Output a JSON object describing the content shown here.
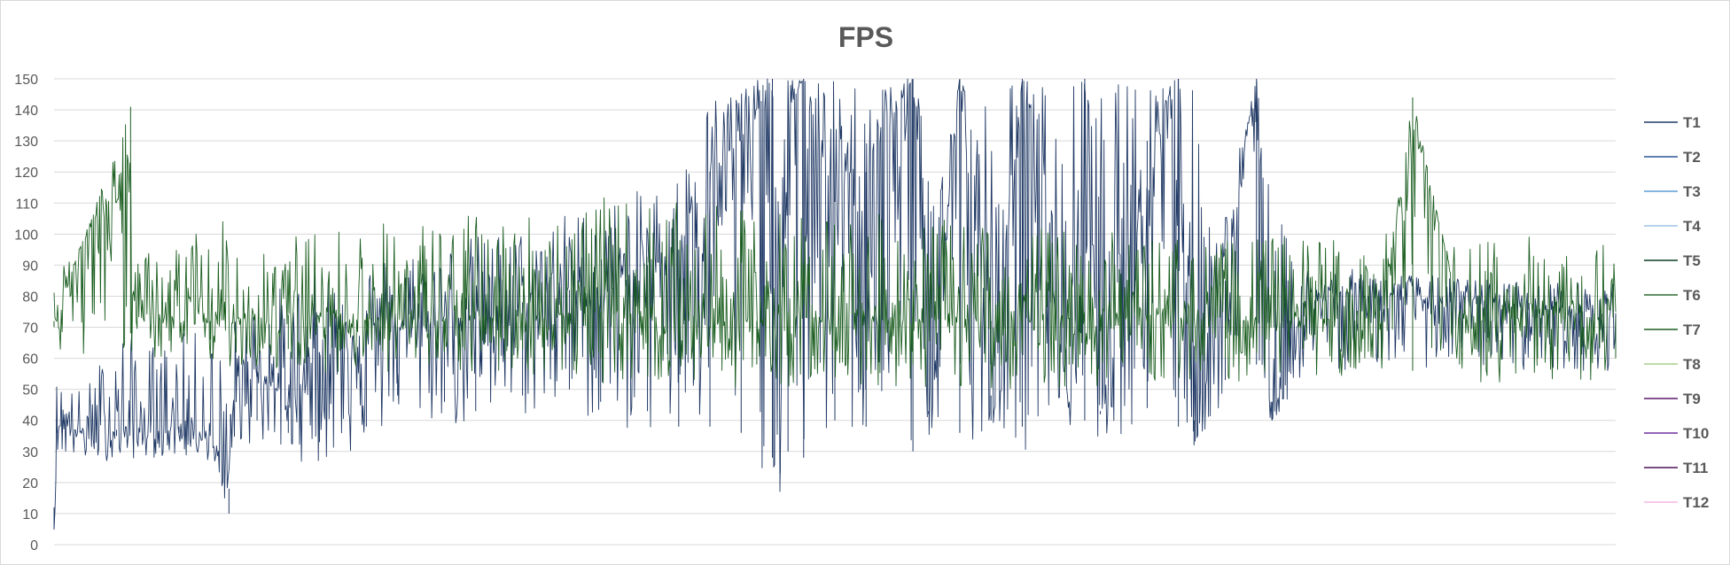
{
  "chart_data": {
    "type": "line",
    "title": "FPS",
    "xlabel": "",
    "ylabel": "",
    "ylim": [
      0,
      150
    ],
    "yticks": [
      0,
      10,
      20,
      30,
      40,
      50,
      60,
      70,
      80,
      90,
      100,
      110,
      120,
      130,
      140,
      150
    ],
    "grid": true,
    "legend_position": "right",
    "x_range": [
      0,
      1
    ],
    "series": [
      {
        "name": "T1",
        "color": "#1f3864",
        "x": [
          0.0,
          0.002,
          0.005,
          0.02,
          0.04,
          0.06,
          0.08,
          0.1,
          0.112,
          0.113,
          0.13,
          0.15,
          0.17,
          0.2,
          0.22,
          0.25,
          0.27,
          0.3,
          0.33,
          0.35,
          0.38,
          0.4,
          0.42,
          0.44,
          0.46,
          0.465,
          0.47,
          0.48,
          0.5,
          0.52,
          0.55,
          0.56,
          0.58,
          0.6,
          0.62,
          0.65,
          0.66,
          0.67,
          0.7,
          0.72,
          0.73,
          0.75,
          0.77,
          0.78,
          0.8,
          0.85,
          0.9,
          0.95,
          1.0
        ],
        "y": [
          5,
          38,
          40,
          35,
          37,
          36,
          38,
          36,
          10,
          42,
          58,
          45,
          62,
          68,
          70,
          72,
          75,
          78,
          82,
          80,
          90,
          95,
          120,
          130,
          150,
          28,
          140,
          150,
          110,
          120,
          150,
          42,
          150,
          40,
          150,
          45,
          150,
          42,
          130,
          150,
          32,
          85,
          150,
          40,
          78,
          80,
          78,
          76,
          74
        ],
        "band_low": [
          4,
          28,
          28,
          27,
          27,
          28,
          28,
          27,
          10,
          30,
          32,
          28,
          25,
          30,
          40,
          38,
          35,
          40,
          42,
          38,
          35,
          30,
          30,
          28,
          20,
          15,
          22,
          20,
          32,
          30,
          22,
          35,
          28,
          40,
          30,
          38,
          32,
          35,
          36,
          30,
          32,
          45,
          50,
          38,
          55,
          57,
          57,
          56,
          56
        ],
        "band_high": [
          10,
          62,
          52,
          50,
          72,
          65,
          68,
          70,
          60,
          72,
          80,
          85,
          88,
          92,
          95,
          98,
          100,
          102,
          108,
          110,
          115,
          120,
          145,
          150,
          150,
          150,
          150,
          150,
          150,
          150,
          150,
          150,
          150,
          150,
          150,
          150,
          150,
          150,
          150,
          150,
          150,
          110,
          150,
          110,
          90,
          88,
          86,
          85,
          84
        ]
      },
      {
        "name": "T2",
        "color": "#2e5597"
      },
      {
        "name": "T3",
        "color": "#5b9bd5"
      },
      {
        "name": "T4",
        "color": "#9dc3e6"
      },
      {
        "name": "T5",
        "color": "#0b3d20"
      },
      {
        "name": "T6",
        "color": "#2f6b34"
      },
      {
        "name": "T7",
        "color": "#1b5e20",
        "x": [
          0.0,
          0.05,
          0.049,
          0.1,
          0.15,
          0.2,
          0.25,
          0.3,
          0.35,
          0.4,
          0.45,
          0.5,
          0.55,
          0.6,
          0.65,
          0.7,
          0.75,
          0.8,
          0.85,
          0.87,
          0.9,
          0.92,
          0.95,
          1.0
        ],
        "y": [
          72,
          73,
          141,
          72,
          74,
          73,
          72,
          74,
          75,
          73,
          72,
          74,
          73,
          72,
          73,
          74,
          72,
          73,
          72,
          144,
          73,
          72,
          74,
          73
        ],
        "band_low": [
          62,
          60,
          60,
          58,
          55,
          56,
          54,
          55,
          52,
          52,
          50,
          52,
          50,
          50,
          50,
          52,
          52,
          55,
          52,
          48,
          50,
          52,
          52,
          52
        ],
        "band_high": [
          88,
          92,
          110,
          105,
          100,
          104,
          106,
          108,
          112,
          110,
          108,
          108,
          105,
          104,
          102,
          100,
          98,
          100,
          100,
          102,
          100,
          100,
          100,
          98
        ]
      },
      {
        "name": "T8",
        "color": "#a9d18e"
      },
      {
        "name": "T9",
        "color": "#5c1a6b"
      },
      {
        "name": "T10",
        "color": "#7030a0"
      },
      {
        "name": "T11",
        "color": "#4b1458"
      },
      {
        "name": "T12",
        "color": "#f4b6e5"
      }
    ]
  }
}
